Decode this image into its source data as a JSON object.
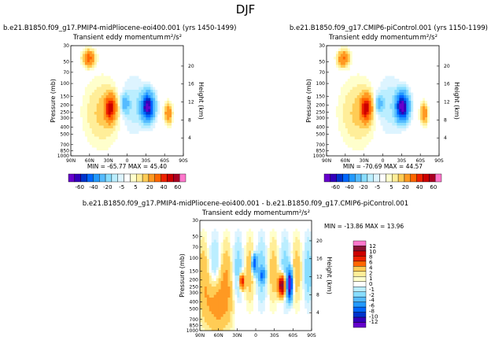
{
  "figure_title": "DJF",
  "palette": [
    "#6600cc",
    "#3300bb",
    "#0033cc",
    "#0066ff",
    "#2299ff",
    "#55bbff",
    "#88ddff",
    "#bbeeff",
    "#ddf4ff",
    "#ffffff",
    "#ffffcc",
    "#ffee99",
    "#ffcc55",
    "#ff9922",
    "#ff6600",
    "#ee2200",
    "#cc0000",
    "#aa0022",
    "#881133",
    "#ff77cc"
  ],
  "colors": {
    "page_bg": "#ffffff",
    "frame": "#000000"
  },
  "chart_data": [
    {
      "type": "heatmap",
      "title": "b.e21.B1850.f09_g17.PMIP4-midPliocene-eoi400.001 (yrs 1450-1499)",
      "subtitle": "Transient eddy momentum",
      "units": "m²/s²",
      "x_ticks": [
        "90N",
        "60N",
        "30N",
        "0",
        "30S",
        "60S",
        "90S"
      ],
      "xlim": [
        90,
        -90
      ],
      "ylabel": "Pressure (mb)",
      "y_ticks": [
        30,
        50,
        70,
        100,
        150,
        200,
        250,
        300,
        400,
        500,
        700,
        850,
        1000
      ],
      "ylim": [
        1000,
        30
      ],
      "y_scale": "log",
      "y2label": "Height (km)",
      "y2_ticks": [
        20,
        16,
        12,
        8,
        4
      ],
      "min_max_text": "MIN = -65.77   MAX = 45.40",
      "colorbar_labels": [
        "-60",
        "-40",
        "-20",
        "-5",
        "5",
        "20",
        "40",
        "60"
      ],
      "features": [
        {
          "lat": 61,
          "p": 45,
          "value": 25,
          "extent_lat": 8,
          "extent_p": 0.22
        },
        {
          "lat": 27,
          "p": 220,
          "value": 45.4,
          "extent_lat": 8,
          "extent_p": 0.36
        },
        {
          "lat": 3,
          "p": 190,
          "value": -15,
          "extent_lat": 6,
          "extent_p": 0.28
        },
        {
          "lat": -33,
          "p": 210,
          "value": -65.77,
          "extent_lat": 9,
          "extent_p": 0.38
        },
        {
          "lat": -66,
          "p": 260,
          "value": 20,
          "extent_lat": 5,
          "extent_p": 0.28
        }
      ]
    },
    {
      "type": "heatmap",
      "title": "b.e21.B1850.f09_g17.CMIP6-piControl.001 (yrs 1150-1199)",
      "subtitle": "Transient eddy momentum",
      "units": "m²/s²",
      "x_ticks": [
        "90N",
        "60N",
        "30N",
        "0",
        "30S",
        "60S",
        "90S"
      ],
      "xlim": [
        90,
        -90
      ],
      "ylabel": "Pressure (mb)",
      "y_ticks": [
        30,
        50,
        70,
        100,
        150,
        200,
        250,
        300,
        400,
        500,
        700,
        850,
        1000
      ],
      "ylim": [
        1000,
        30
      ],
      "y_scale": "log",
      "y2label": "Height (km)",
      "y2_ticks": [
        20,
        16,
        12,
        8,
        4
      ],
      "min_max_text": "MIN = -70.69   MAX = 44.57",
      "colorbar_labels": [
        "-60",
        "-40",
        "-20",
        "-5",
        "5",
        "20",
        "40",
        "60"
      ],
      "features": [
        {
          "lat": 63,
          "p": 45,
          "value": 22,
          "extent_lat": 8,
          "extent_p": 0.22
        },
        {
          "lat": 27,
          "p": 220,
          "value": 44.57,
          "extent_lat": 8,
          "extent_p": 0.36
        },
        {
          "lat": 5,
          "p": 190,
          "value": -12,
          "extent_lat": 6,
          "extent_p": 0.28
        },
        {
          "lat": -31,
          "p": 210,
          "value": -70.69,
          "extent_lat": 9,
          "extent_p": 0.38
        },
        {
          "lat": -66,
          "p": 260,
          "value": 18,
          "extent_lat": 5,
          "extent_p": 0.28
        }
      ]
    },
    {
      "type": "heatmap",
      "title": "b.e21.B1850.f09_g17.PMIP4-midPliocene-eoi400.001 - b.e21.B1850.f09_g17.CMIP6-piControl.001",
      "subtitle": "Transient eddy momentum",
      "units": "m²/s²",
      "x_ticks": [
        "90N",
        "60N",
        "30N",
        "0",
        "30S",
        "60S",
        "90S"
      ],
      "xlim": [
        90,
        -90
      ],
      "ylabel": "Pressure (mb)",
      "y_ticks": [
        30,
        50,
        70,
        100,
        150,
        200,
        250,
        300,
        400,
        500,
        700,
        850,
        1000
      ],
      "ylim": [
        1000,
        30
      ],
      "y_scale": "log",
      "y2label": "Height (km)",
      "y2_ticks": [
        20,
        16,
        12,
        8,
        4
      ],
      "min_max_text": "MIN = -13.86   MAX = 13.96",
      "colorbar_labels": [
        "12",
        "10",
        "8",
        "6",
        "4",
        "2",
        "1",
        "0",
        "-1",
        "-2",
        "-4",
        "-6",
        "-8",
        "-10",
        "-12"
      ],
      "features": [
        {
          "lat": 62,
          "p": 400,
          "value": 3,
          "extent_lat": 22,
          "extent_p": 0.9
        },
        {
          "lat": 22,
          "p": 210,
          "value": 8,
          "extent_lat": 4,
          "extent_p": 0.22
        },
        {
          "lat": 2,
          "p": 120,
          "value": -8,
          "extent_lat": 4,
          "extent_p": 0.28
        },
        {
          "lat": -10,
          "p": 170,
          "value": -6,
          "extent_lat": 5,
          "extent_p": 0.2
        },
        {
          "lat": -42,
          "p": 240,
          "value": 13.96,
          "extent_lat": 5,
          "extent_p": 0.3
        },
        {
          "lat": -55,
          "p": 230,
          "value": -13.86,
          "extent_lat": 4,
          "extent_p": 0.42
        }
      ]
    }
  ]
}
